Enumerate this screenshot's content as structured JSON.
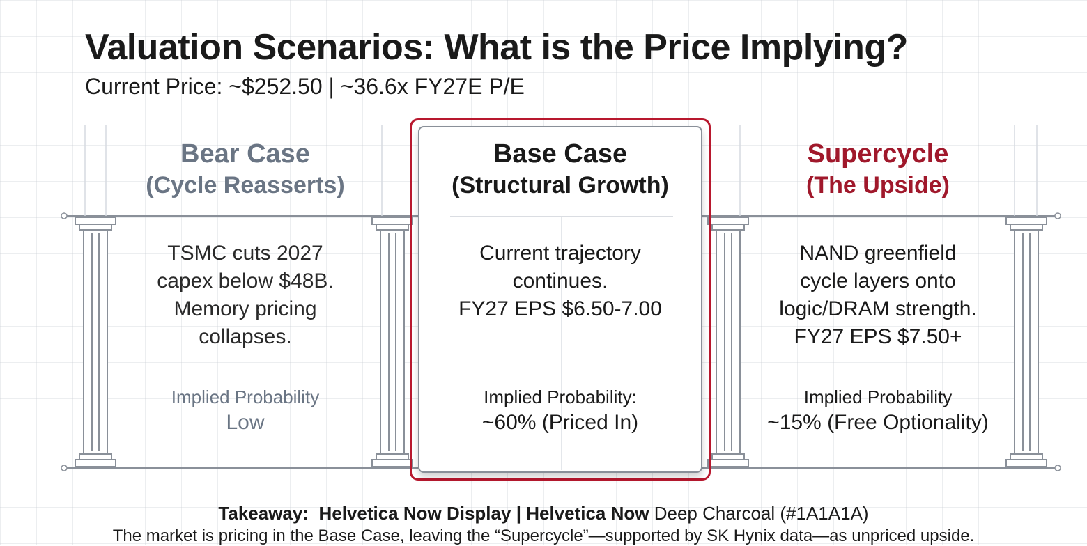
{
  "title": "Valuation Scenarios: What is the Price Implying?",
  "subtitle": "Current Price: ~$252.50 | ~36.6x FY27E P/E",
  "scenarios": {
    "bear": {
      "heading": "Bear Case",
      "subheading": "(Cycle Reasserts)",
      "description_lines": [
        "TSMC cuts 2027",
        "capex below $48B.",
        "Memory pricing",
        "collapses."
      ],
      "probability_label": "Implied Probability",
      "probability_value": "Low"
    },
    "base": {
      "heading": "Base Case",
      "subheading": "(Structural Growth)",
      "description_lines": [
        "Current trajectory",
        "continues.",
        "FY27 EPS $6.50-7.00"
      ],
      "probability_label": "Implied Probability:",
      "probability_value": "~60% (Priced In)"
    },
    "supercycle": {
      "heading": "Supercycle",
      "subheading": "(The Upside)",
      "description_lines": [
        "NAND greenfield",
        "cycle layers onto",
        "logic/DRAM strength.",
        "FY27 EPS $7.50+"
      ],
      "probability_label": "Implied Probability",
      "probability_value": "~15% (Free Optionality)"
    }
  },
  "takeaway": {
    "label": "Takeaway:",
    "font_display": "Helvetica Now Display",
    "separator": "|",
    "font_text": "Helvetica Now",
    "color_note": "Deep Charcoal (#1A1A1A)"
  },
  "footnote": "The market is pricing in the Base Case, leaving the “Supercycle”—supported by SK Hynix data—as unpriced upside.",
  "colors": {
    "bear": "#6a7584",
    "base": "#1a1a1a",
    "supercycle": "#a0182b",
    "highlight_border": "#b8182e",
    "charcoal": "#1A1A1A"
  }
}
